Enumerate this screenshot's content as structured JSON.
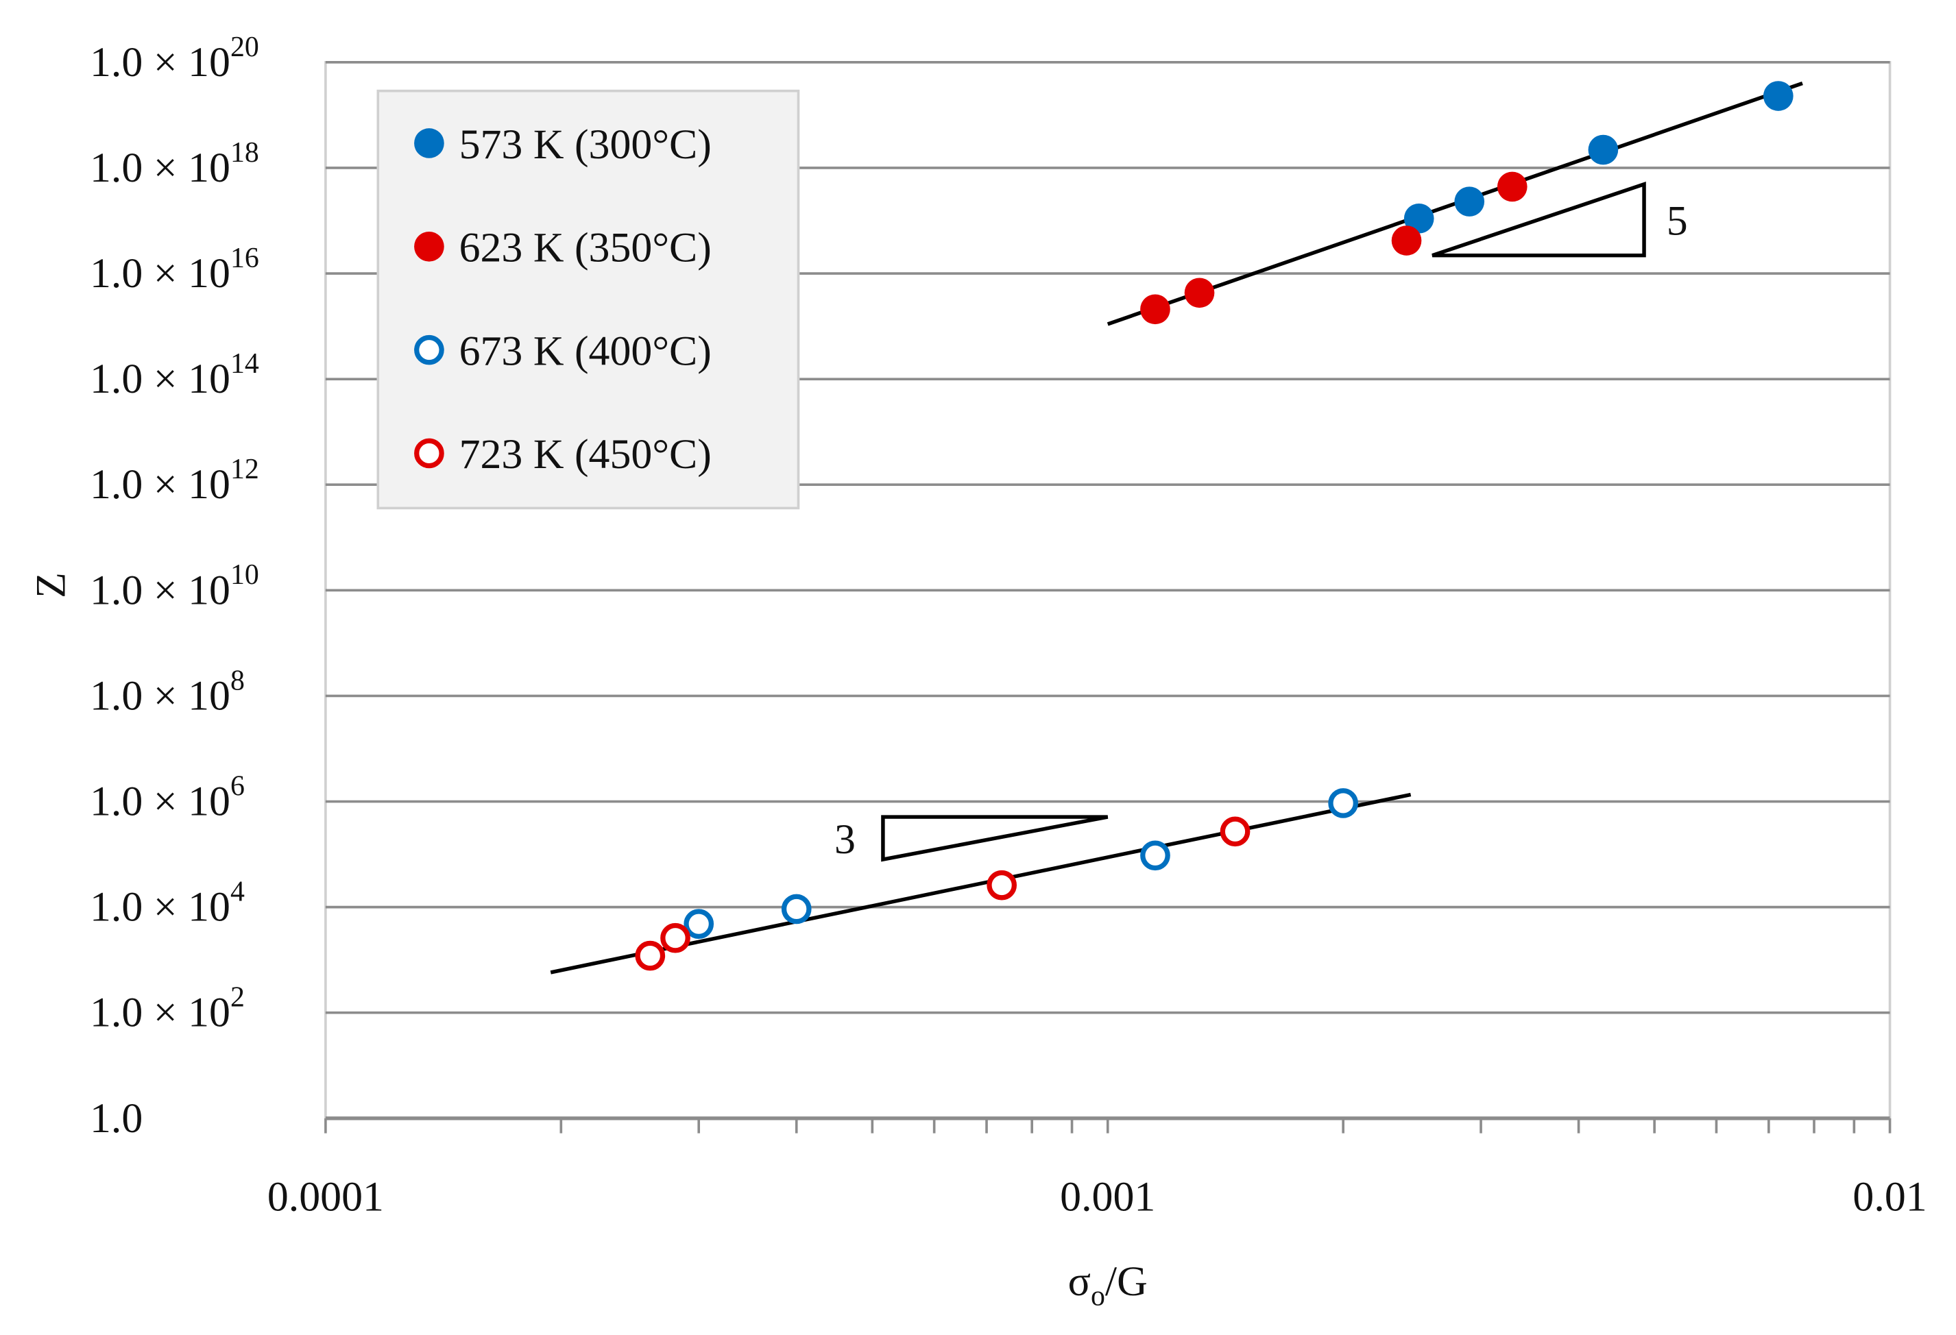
{
  "chart_data": {
    "type": "scatter",
    "xlabel": {
      "base": "σ",
      "sub": "o",
      "rest": "/G"
    },
    "ylabel": "Z",
    "xscale": "log",
    "yscale": "log",
    "xlim": [
      0.0001,
      0.01
    ],
    "xticks": [
      0.0001,
      0.001,
      0.01
    ],
    "xminor_ticks": [
      0.0002,
      0.0003,
      0.0004,
      0.0005,
      0.0006,
      0.0007,
      0.0008,
      0.0009,
      0.002,
      0.003,
      0.004,
      0.005,
      0.006,
      0.007,
      0.008,
      0.009
    ],
    "ylim": [
      1,
      1e+20
    ],
    "yticks": [
      {
        "value": 1,
        "label": "1.0"
      },
      {
        "value": 100.0,
        "label": "1.0 × 10",
        "sup": "2"
      },
      {
        "value": 10000.0,
        "label": "1.0 × 10",
        "sup": "4"
      },
      {
        "value": 1000000.0,
        "label": "1.0 × 10",
        "sup": "6"
      },
      {
        "value": 100000000.0,
        "label": "1.0 × 10",
        "sup": "8"
      },
      {
        "value": 10000000000.0,
        "label": "1.0 × 10",
        "sup": "10"
      },
      {
        "value": 1000000000000.0,
        "label": "1.0 × 10",
        "sup": "12"
      },
      {
        "value": 100000000000000.0,
        "label": "1.0 × 10",
        "sup": "14"
      },
      {
        "value": 1e+16,
        "label": "1.0 × 10",
        "sup": "16"
      },
      {
        "value": 1e+18,
        "label": "1.0 × 10",
        "sup": "18"
      },
      {
        "value": 1e+20,
        "label": "1.0 × 10",
        "sup": "20"
      }
    ],
    "grid": true,
    "legend": "upper left",
    "series": [
      {
        "name": "573 K (300°C)",
        "color": "#0070c0",
        "filled": true,
        "x": [
          0.0025,
          0.0029,
          0.0043,
          0.0072
        ],
        "values": [
          1.1e+17,
          2.3e+17,
          2.2e+18,
          2.3e+19
        ]
      },
      {
        "name": "623 K (350°C)",
        "color": "#e00000",
        "filled": true,
        "x": [
          0.00115,
          0.00131,
          0.00241,
          0.00329
        ],
        "values": [
          2100000000000000.0,
          4300000000000000.0,
          4.2e+16,
          4.4e+17
        ]
      },
      {
        "name": "673 K (400°C)",
        "color": "#0070c0",
        "filled": false,
        "x": [
          0.0003,
          0.0004,
          0.00115,
          0.002
        ],
        "values": [
          4800.0,
          9200.0,
          95000.0,
          930000.0
        ]
      },
      {
        "name": "723 K (450°C)",
        "color": "#e00000",
        "filled": false,
        "x": [
          0.00026,
          0.00028,
          0.000732,
          0.001455
        ],
        "values": [
          1200.0,
          2600.0,
          26000.0,
          270000.0
        ]
      }
    ],
    "fit_lines": [
      {
        "color": "#000000",
        "x": [
          0.001,
          0.00773
        ],
        "values": [
          1100000000000000.0,
          4e+19
        ]
      },
      {
        "color": "#000000",
        "x": [
          0.000194,
          0.00244
        ],
        "values": [
          580,
          1350000.0
        ]
      }
    ],
    "annotations": [
      {
        "label": "5",
        "x": [
          0.0026,
          0.00485,
          0.00485
        ],
        "y": [
          2.2e+16,
          4.9e+17,
          2.2e+16
        ]
      },
      {
        "label": "3",
        "x": [
          0.000516,
          0.001,
          0.000516
        ],
        "y": [
          510000.0,
          510000.0,
          80000.0
        ]
      }
    ]
  }
}
